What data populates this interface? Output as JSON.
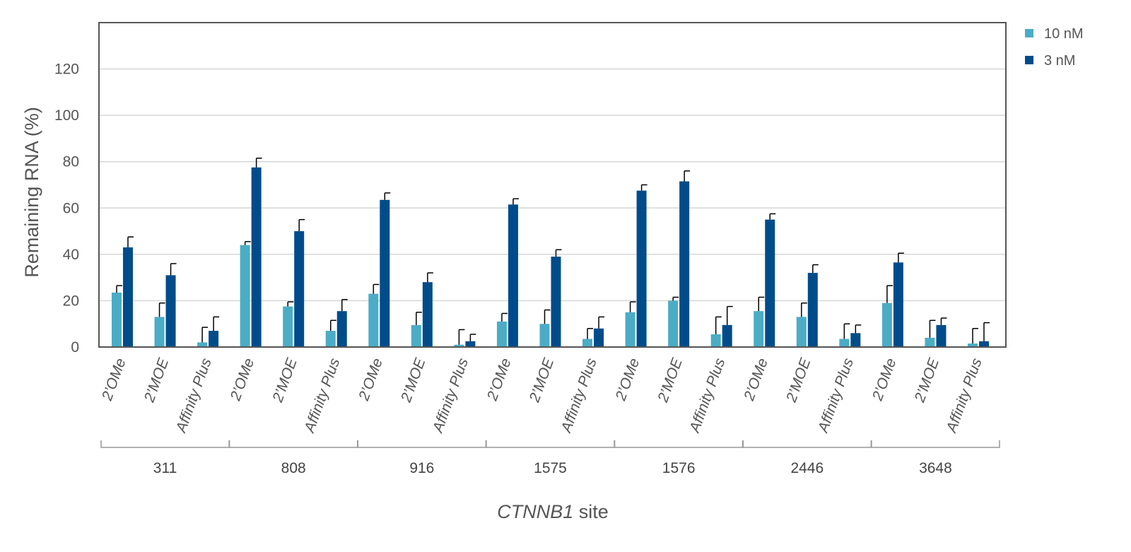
{
  "chart_data": {
    "type": "bar",
    "ylabel": "Remaining RNA (%)",
    "xlabel_italic": "CTNNB1",
    "xlabel_rest": " site",
    "ylim": [
      0,
      140
    ],
    "yticks": [
      0,
      20,
      40,
      60,
      80,
      100,
      120
    ],
    "grid": true,
    "legend_position": "top-right",
    "groups": [
      "311",
      "808",
      "916",
      "1575",
      "1576",
      "2446",
      "3648"
    ],
    "subcategories": [
      "2’OMe",
      "2’MOE",
      "Affinity Plus"
    ],
    "series": [
      {
        "name": "10 nM",
        "color": "#4BACC6",
        "values": [
          23.5,
          13,
          2,
          44,
          17.5,
          7,
          23,
          9.5,
          1,
          11,
          10,
          3.5,
          15,
          20,
          5.5,
          15.5,
          13,
          3.5,
          19,
          4,
          1.5
        ],
        "errors": [
          3,
          6,
          6.5,
          1.5,
          2,
          4.5,
          4,
          5.5,
          6.5,
          3.5,
          6,
          4.5,
          4.5,
          1.5,
          7.5,
          6,
          6,
          6.5,
          7.5,
          7.5,
          6.5
        ]
      },
      {
        "name": "3 nM",
        "color": "#004C8A",
        "values": [
          43,
          31,
          7,
          77.5,
          50,
          15.5,
          63.5,
          28,
          2.5,
          61.5,
          39,
          8,
          67.5,
          71.5,
          9.5,
          55,
          32,
          6,
          36.5,
          9.5,
          2.5
        ],
        "errors": [
          4.5,
          5,
          6,
          4,
          5,
          5,
          3,
          4,
          3,
          2.5,
          3,
          5,
          2.5,
          4.5,
          8,
          2.5,
          3.5,
          3.5,
          4,
          3,
          8
        ]
      }
    ]
  }
}
